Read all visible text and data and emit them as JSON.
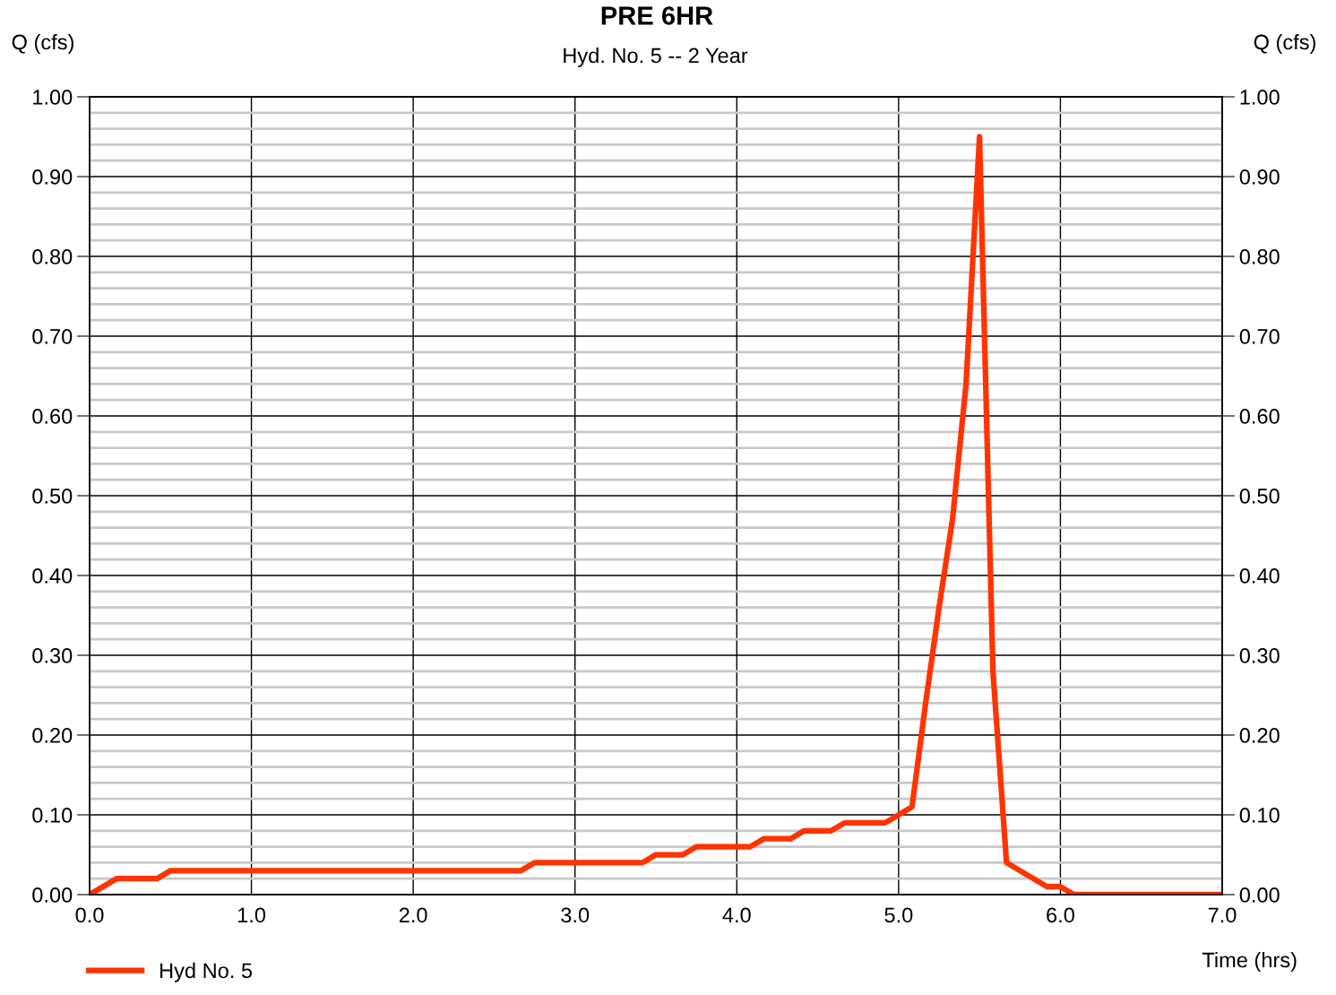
{
  "chart_data": {
    "type": "line",
    "title": "PRE 6HR",
    "subtitle": "Hyd. No. 5 -- 2 Year",
    "xlabel": "Time (hrs)",
    "ylabel": "Q (cfs)",
    "y2label": "Q (cfs)",
    "series": [
      {
        "name": "Hyd No. 5",
        "color": "#ff3300",
        "x": [
          0.0,
          0.167,
          0.417,
          0.5,
          2.667,
          2.75,
          3.417,
          3.5,
          3.667,
          3.75,
          4.083,
          4.167,
          4.333,
          4.417,
          4.583,
          4.667,
          4.917,
          5.083,
          5.167,
          5.25,
          5.333,
          5.417,
          5.5,
          5.583,
          5.667,
          5.917,
          6.0,
          6.083,
          7.0
        ],
        "values": [
          0.0,
          0.02,
          0.02,
          0.03,
          0.03,
          0.04,
          0.04,
          0.05,
          0.05,
          0.06,
          0.06,
          0.07,
          0.07,
          0.08,
          0.08,
          0.09,
          0.09,
          0.11,
          0.24,
          0.36,
          0.47,
          0.64,
          0.95,
          0.28,
          0.04,
          0.01,
          0.01,
          0.0,
          0.0
        ]
      }
    ],
    "xlim": [
      0,
      7
    ],
    "xticks": [
      {
        "value": 0,
        "label": "0.0"
      },
      {
        "value": 1,
        "label": "1.0"
      },
      {
        "value": 2,
        "label": "2.0"
      },
      {
        "value": 3,
        "label": "3.0"
      },
      {
        "value": 4,
        "label": "4.0"
      },
      {
        "value": 5,
        "label": "5.0"
      },
      {
        "value": 6,
        "label": "6.0"
      },
      {
        "value": 7,
        "label": "7.0"
      }
    ],
    "ylim": [
      0,
      1
    ],
    "yticks": [
      {
        "value": 0,
        "label": "0.00"
      },
      {
        "value": 0.02,
        "label": null
      },
      {
        "value": 0.04,
        "label": null
      },
      {
        "value": 0.06,
        "label": null
      },
      {
        "value": 0.08,
        "label": null
      },
      {
        "value": 0.1,
        "label": "0.10"
      },
      {
        "value": 0.12,
        "label": null
      },
      {
        "value": 0.14,
        "label": null
      },
      {
        "value": 0.16,
        "label": null
      },
      {
        "value": 0.18,
        "label": null
      },
      {
        "value": 0.2,
        "label": "0.20"
      },
      {
        "value": 0.22,
        "label": null
      },
      {
        "value": 0.24,
        "label": null
      },
      {
        "value": 0.26,
        "label": null
      },
      {
        "value": 0.28,
        "label": null
      },
      {
        "value": 0.3,
        "label": "0.30"
      },
      {
        "value": 0.32,
        "label": null
      },
      {
        "value": 0.34,
        "label": null
      },
      {
        "value": 0.36,
        "label": null
      },
      {
        "value": 0.38,
        "label": null
      },
      {
        "value": 0.4,
        "label": "0.40"
      },
      {
        "value": 0.42,
        "label": null
      },
      {
        "value": 0.44,
        "label": null
      },
      {
        "value": 0.46,
        "label": null
      },
      {
        "value": 0.48,
        "label": null
      },
      {
        "value": 0.5,
        "label": "0.50"
      },
      {
        "value": 0.52,
        "label": null
      },
      {
        "value": 0.54,
        "label": null
      },
      {
        "value": 0.56,
        "label": null
      },
      {
        "value": 0.58,
        "label": null
      },
      {
        "value": 0.6,
        "label": "0.60"
      },
      {
        "value": 0.62,
        "label": null
      },
      {
        "value": 0.64,
        "label": null
      },
      {
        "value": 0.66,
        "label": null
      },
      {
        "value": 0.68,
        "label": null
      },
      {
        "value": 0.7,
        "label": "0.70"
      },
      {
        "value": 0.72,
        "label": null
      },
      {
        "value": 0.74,
        "label": null
      },
      {
        "value": 0.76,
        "label": null
      },
      {
        "value": 0.78,
        "label": null
      },
      {
        "value": 0.8,
        "label": "0.80"
      },
      {
        "value": 0.82,
        "label": null
      },
      {
        "value": 0.84,
        "label": null
      },
      {
        "value": 0.86,
        "label": null
      },
      {
        "value": 0.88,
        "label": null
      },
      {
        "value": 0.9,
        "label": "0.90"
      },
      {
        "value": 0.92,
        "label": null
      },
      {
        "value": 0.94,
        "label": null
      },
      {
        "value": 0.96,
        "label": null
      },
      {
        "value": 0.98,
        "label": null
      },
      {
        "value": 1.0,
        "label": "1.00"
      }
    ],
    "y2lim": [
      0,
      1
    ],
    "y2ticks": [
      {
        "value": 0,
        "label": "0.00"
      },
      {
        "value": 0.1,
        "label": "0.10"
      },
      {
        "value": 0.2,
        "label": "0.20"
      },
      {
        "value": 0.3,
        "label": "0.30"
      },
      {
        "value": 0.4,
        "label": "0.40"
      },
      {
        "value": 0.5,
        "label": "0.50"
      },
      {
        "value": 0.6,
        "label": "0.60"
      },
      {
        "value": 0.7,
        "label": "0.70"
      },
      {
        "value": 0.8,
        "label": "0.80"
      },
      {
        "value": 0.9,
        "label": "0.90"
      },
      {
        "value": 1.0,
        "label": "1.00"
      }
    ],
    "grid": true,
    "legend": "bottom left",
    "marker": "none",
    "line_style": "solid"
  }
}
